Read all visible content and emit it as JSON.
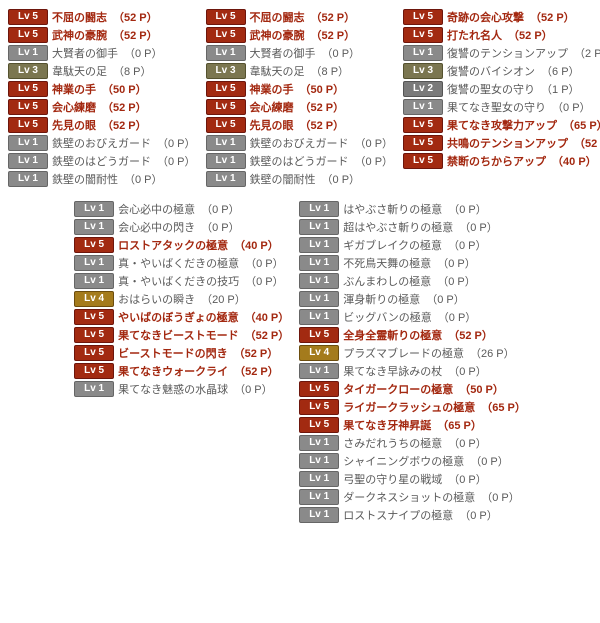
{
  "levels": {
    "1": "Lv 1",
    "2": "Lv 2",
    "3": "Lv 3",
    "4": "Lv 4",
    "5": "Lv 5"
  },
  "cols": {
    "a": [
      {
        "lv": 5,
        "name": "不屈の闘志",
        "pts": "（52 P）",
        "hot": true
      },
      {
        "lv": 5,
        "name": "武神の豪腕",
        "pts": "（52 P）",
        "hot": true
      },
      {
        "lv": 1,
        "name": "大賢者の御手",
        "pts": "（0 P）",
        "hot": false
      },
      {
        "lv": 3,
        "name": "韋駄天の足",
        "pts": "（8 P）",
        "hot": false
      },
      {
        "lv": 5,
        "name": "神業の手",
        "pts": "（50 P）",
        "hot": true
      },
      {
        "lv": 5,
        "name": "会心練磨",
        "pts": "（52 P）",
        "hot": true
      },
      {
        "lv": 5,
        "name": "先見の眼",
        "pts": "（52 P）",
        "hot": true
      },
      {
        "lv": 1,
        "name": "鉄壁のおびえガード",
        "pts": "（0 P）",
        "hot": false
      },
      {
        "lv": 1,
        "name": "鉄壁のはどうガード",
        "pts": "（0 P）",
        "hot": false
      },
      {
        "lv": 1,
        "name": "鉄壁の闇耐性",
        "pts": "（0 P）",
        "hot": false
      }
    ],
    "b": [
      {
        "lv": 5,
        "name": "不屈の闘志",
        "pts": "（52 P）",
        "hot": true
      },
      {
        "lv": 5,
        "name": "武神の豪腕",
        "pts": "（52 P）",
        "hot": true
      },
      {
        "lv": 1,
        "name": "大賢者の御手",
        "pts": "（0 P）",
        "hot": false
      },
      {
        "lv": 3,
        "name": "韋駄天の足",
        "pts": "（8 P）",
        "hot": false
      },
      {
        "lv": 5,
        "name": "神業の手",
        "pts": "（50 P）",
        "hot": true
      },
      {
        "lv": 5,
        "name": "会心練磨",
        "pts": "（52 P）",
        "hot": true
      },
      {
        "lv": 5,
        "name": "先見の眼",
        "pts": "（52 P）",
        "hot": true
      },
      {
        "lv": 1,
        "name": "鉄壁のおびえガード",
        "pts": "（0 P）",
        "hot": false
      },
      {
        "lv": 1,
        "name": "鉄壁のはどうガード",
        "pts": "（0 P）",
        "hot": false
      },
      {
        "lv": 1,
        "name": "鉄壁の闇耐性",
        "pts": "（0 P）",
        "hot": false
      }
    ],
    "c": [
      {
        "lv": 5,
        "name": "奇跡の会心攻撃",
        "pts": "（52 P）",
        "hot": true
      },
      {
        "lv": 5,
        "name": "打たれ名人",
        "pts": "（52 P）",
        "hot": true
      },
      {
        "lv": 1,
        "name": "復讐のテンションアップ",
        "pts": "（2 P）",
        "hot": false
      },
      {
        "lv": 3,
        "name": "復讐のバイシオン",
        "pts": "（6 P）",
        "hot": false
      },
      {
        "lv": 2,
        "name": "復讐の聖女の守り",
        "pts": "（1 P）",
        "hot": false
      },
      {
        "lv": 1,
        "name": "果てなき聖女の守り",
        "pts": "（0 P）",
        "hot": false
      },
      {
        "lv": 5,
        "name": "果てなき攻撃力アップ",
        "pts": "（65 P）",
        "hot": true
      },
      {
        "lv": 5,
        "name": "共鳴のテンションアップ",
        "pts": "（52 P）",
        "hot": true
      },
      {
        "lv": 5,
        "name": "禁断のちからアップ",
        "pts": "（40 P）",
        "hot": true
      }
    ],
    "d": [
      {
        "lv": 1,
        "name": "会心必中の極意",
        "pts": "（0 P）",
        "hot": false
      },
      {
        "lv": 1,
        "name": "会心必中の閃き",
        "pts": "（0 P）",
        "hot": false
      },
      {
        "lv": 5,
        "name": "ロストアタックの極意",
        "pts": "（40 P）",
        "hot": true
      },
      {
        "lv": 1,
        "name": "真・やいばくだきの極意",
        "pts": "（0 P）",
        "hot": false
      },
      {
        "lv": 1,
        "name": "真・やいばくだきの技巧",
        "pts": "（0 P）",
        "hot": false
      },
      {
        "lv": 4,
        "name": "おはらいの瞬き",
        "pts": "（20 P）",
        "hot": false
      },
      {
        "lv": 5,
        "name": "やいばのぼうぎょの極意",
        "pts": "（40 P）",
        "hot": true
      },
      {
        "lv": 5,
        "name": "果てなきビーストモード",
        "pts": "（52 P）",
        "hot": true
      },
      {
        "lv": 5,
        "name": "ビーストモードの閃き",
        "pts": "（52 P）",
        "hot": true
      },
      {
        "lv": 5,
        "name": "果てなきウォークライ",
        "pts": "（52 P）",
        "hot": true
      },
      {
        "lv": 1,
        "name": "果てなき魅惑の水晶球",
        "pts": "（0 P）",
        "hot": false
      }
    ],
    "e": [
      {
        "lv": 1,
        "name": "はやぶさ斬りの極意",
        "pts": "（0 P）",
        "hot": false
      },
      {
        "lv": 1,
        "name": "超はやぶさ斬りの極意",
        "pts": "（0 P）",
        "hot": false
      },
      {
        "lv": 1,
        "name": "ギガブレイクの極意",
        "pts": "（0 P）",
        "hot": false
      },
      {
        "lv": 1,
        "name": "不死鳥天舞の極意",
        "pts": "（0 P）",
        "hot": false
      },
      {
        "lv": 1,
        "name": "ぶんまわしの極意",
        "pts": "（0 P）",
        "hot": false
      },
      {
        "lv": 1,
        "name": "渾身斬りの極意",
        "pts": "（0 P）",
        "hot": false
      },
      {
        "lv": 1,
        "name": "ビッグバンの極意",
        "pts": "（0 P）",
        "hot": false
      },
      {
        "lv": 5,
        "name": "全身全霊斬りの極意",
        "pts": "（52 P）",
        "hot": true
      },
      {
        "lv": 4,
        "name": "プラズマブレードの極意",
        "pts": "（26 P）",
        "hot": false
      },
      {
        "lv": 1,
        "name": "果てなき早詠みの杖",
        "pts": "（0 P）",
        "hot": false
      },
      {
        "lv": 5,
        "name": "タイガークローの極意",
        "pts": "（50 P）",
        "hot": true
      },
      {
        "lv": 5,
        "name": "ライガークラッシュの極意",
        "pts": "（65 P）",
        "hot": true
      },
      {
        "lv": 5,
        "name": "果てなき牙神昇誕",
        "pts": "（65 P）",
        "hot": true
      },
      {
        "lv": 1,
        "name": "さみだれうちの極意",
        "pts": "（0 P）",
        "hot": false
      },
      {
        "lv": 1,
        "name": "シャイニングボウの極意",
        "pts": "（0 P）",
        "hot": false
      },
      {
        "lv": 1,
        "name": "弓聖の守り星の戦域",
        "pts": "（0 P）",
        "hot": false
      },
      {
        "lv": 1,
        "name": "ダークネスショットの極意",
        "pts": "（0 P）",
        "hot": false
      },
      {
        "lv": 1,
        "name": "ロストスナイプの極意",
        "pts": "（0 P）",
        "hot": false
      }
    ]
  }
}
